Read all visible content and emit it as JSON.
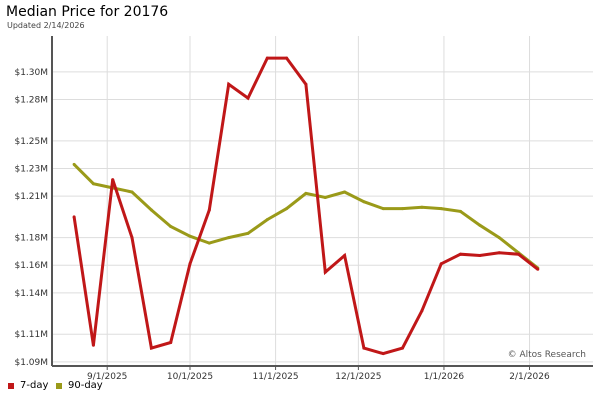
{
  "chart_data": {
    "type": "line",
    "title": "Median Price for 20176",
    "subtitle": "Updated 2/14/2026",
    "watermark": "© Altos Research",
    "xlabel": "",
    "ylabel": "",
    "x_tick_labels": [
      "9/1/2025",
      "10/1/2025",
      "11/1/2025",
      "12/1/2025",
      "1/1/2026",
      "2/1/2026"
    ],
    "y_tick_labels": [
      "$1.09M",
      "$1.11M",
      "$1.14M",
      "$1.16M",
      "$1.18M",
      "$1.21M",
      "$1.23M",
      "$1.25M",
      "$1.28M",
      "$1.30M"
    ],
    "ylim": [
      1087000,
      1326000
    ],
    "grid": true,
    "legend_position": "bottom-left",
    "x": [
      "2025-08-20",
      "2025-08-27",
      "2025-09-03",
      "2025-09-10",
      "2025-09-17",
      "2025-09-24",
      "2025-10-01",
      "2025-10-08",
      "2025-10-15",
      "2025-10-22",
      "2025-10-29",
      "2025-11-05",
      "2025-11-12",
      "2025-11-19",
      "2025-11-26",
      "2025-12-03",
      "2025-12-10",
      "2025-12-17",
      "2025-12-24",
      "2025-12-31",
      "2026-01-07",
      "2026-01-14",
      "2026-01-21",
      "2026-01-28",
      "2026-02-04"
    ],
    "series": [
      {
        "name": "7-day",
        "color": "#c01718",
        "values": [
          1195000,
          1102000,
          1222000,
          1180000,
          1100000,
          1104000,
          1161000,
          1200000,
          1291000,
          1281000,
          1310000,
          1310000,
          1291000,
          1155000,
          1167000,
          1100000,
          1096000,
          1100000,
          1127000,
          1161000,
          1168000,
          1167000,
          1169000,
          1168000,
          1157000
        ]
      },
      {
        "name": "90-day",
        "color": "#9a9a19",
        "values": [
          1233000,
          1219000,
          1216000,
          1213000,
          1200000,
          1188000,
          1181000,
          1176000,
          1180000,
          1183000,
          1193000,
          1201000,
          1212000,
          1209000,
          1213000,
          1206000,
          1201000,
          1201000,
          1202000,
          1201000,
          1199000,
          1189000,
          1180000,
          1169000,
          1158000
        ]
      }
    ]
  }
}
